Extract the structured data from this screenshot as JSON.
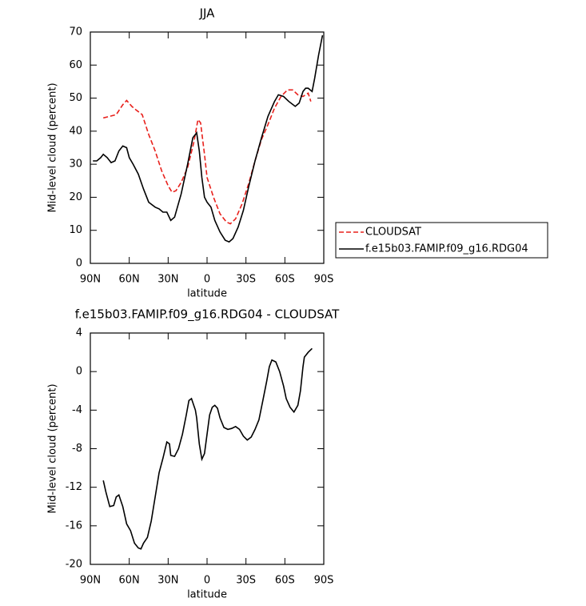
{
  "chart_data": [
    {
      "type": "line",
      "title": "JJA",
      "x_label": "latitude",
      "y_label": "Mid-level cloud (percent)",
      "xlim": [
        90,
        -90
      ],
      "xticks": [
        {
          "value": 90,
          "label": "90N"
        },
        {
          "value": 60,
          "label": "60N"
        },
        {
          "value": 30,
          "label": "30N"
        },
        0,
        {
          "value": -30,
          "label": "30S"
        },
        {
          "value": -60,
          "label": "60S"
        },
        {
          "value": -90,
          "label": "90S"
        }
      ],
      "ylim": [
        0,
        70
      ],
      "yticks": [
        0,
        10,
        20,
        30,
        40,
        50,
        60,
        70
      ],
      "legend": "right",
      "series": [
        {
          "name": "CLOUDSAT",
          "color": "#e8211c",
          "dashed": true,
          "x": [
            80,
            75,
            70,
            65,
            62,
            58,
            55,
            50,
            45,
            40,
            35,
            30,
            27,
            24,
            20,
            15,
            10,
            7,
            5,
            2,
            0,
            -5,
            -10,
            -15,
            -18,
            -22,
            -27,
            -32,
            -37,
            -42,
            -47,
            -52,
            -57,
            -62,
            -66,
            -70,
            -74,
            -78,
            -80
          ],
          "values": [
            44,
            44.5,
            45,
            48,
            49.3,
            47.5,
            46.5,
            45,
            39,
            34,
            28,
            23.5,
            21.5,
            22,
            24.5,
            29,
            37,
            43.5,
            42.5,
            33,
            26,
            20,
            15,
            12.5,
            12,
            13.5,
            18,
            24,
            31,
            37.5,
            42,
            47,
            50.5,
            52.5,
            52.5,
            51,
            50.5,
            51.5,
            49
          ]
        },
        {
          "name": "f.e15b03.FAMIP.f09_g16.RDG04",
          "color": "#000000",
          "dashed": false,
          "x": [
            88,
            85,
            82,
            80,
            77,
            74,
            71,
            68,
            65,
            62,
            60,
            57,
            53,
            49,
            45,
            40,
            37,
            34,
            31,
            28,
            25,
            20,
            15,
            11,
            8,
            6,
            4,
            2,
            0,
            -3,
            -6,
            -10,
            -14,
            -17,
            -20,
            -24,
            -28,
            -32,
            -37,
            -42,
            -47,
            -52,
            -55,
            -59,
            -63,
            -68,
            -71,
            -74,
            -76,
            -78,
            -81,
            -83,
            -86,
            -89
          ],
          "values": [
            31,
            31,
            32,
            33,
            32,
            30.5,
            31,
            34,
            35.5,
            35,
            32,
            30,
            27,
            22.5,
            18.5,
            17,
            16.5,
            15.5,
            15.5,
            13,
            14,
            21,
            30,
            38,
            39.5,
            34,
            26,
            20,
            18.5,
            17,
            13,
            9.5,
            7,
            6.5,
            7.5,
            11,
            16,
            23,
            31,
            38,
            44.5,
            49,
            51,
            50.5,
            49,
            47.5,
            48.5,
            52,
            53,
            53,
            52,
            56,
            63,
            69
          ]
        }
      ]
    },
    {
      "type": "line",
      "title": "f.e15b03.FAMIP.f09_g16.RDG04 - CLOUDSAT",
      "x_label": "latitude",
      "y_label": "Mid-level cloud (percent)",
      "xlim": [
        90,
        -90
      ],
      "xticks": [
        {
          "value": 90,
          "label": "90N"
        },
        {
          "value": 60,
          "label": "60N"
        },
        {
          "value": 30,
          "label": "30N"
        },
        0,
        {
          "value": -30,
          "label": "30S"
        },
        {
          "value": -60,
          "label": "60S"
        },
        {
          "value": -90,
          "label": "90S"
        }
      ],
      "ylim": [
        -20,
        4
      ],
      "yticks": [
        -20,
        -16,
        -12,
        -8,
        -4,
        0,
        4
      ],
      "series": [
        {
          "color": "#000000",
          "dashed": false,
          "x": [
            80,
            78,
            75,
            72,
            70,
            68,
            65,
            62,
            59,
            56,
            53,
            51,
            49,
            46,
            43,
            40,
            37,
            34,
            31,
            29,
            28,
            25,
            22,
            19,
            16,
            14,
            12,
            9,
            8,
            6,
            4,
            2,
            0,
            -2,
            -4,
            -6,
            -8,
            -10,
            -13,
            -16,
            -19,
            -22,
            -25,
            -28,
            -31,
            -34,
            -37,
            -40,
            -43,
            -46,
            -48,
            -50,
            -53,
            -56,
            -59,
            -61,
            -64,
            -67,
            -70,
            -72,
            -74,
            -75,
            -78,
            -81
          ],
          "values": [
            -11.3,
            -12.5,
            -14,
            -13.9,
            -13,
            -12.8,
            -14,
            -15.8,
            -16.5,
            -17.8,
            -18.3,
            -18.4,
            -17.8,
            -17.2,
            -15.5,
            -13,
            -10.5,
            -9,
            -7.3,
            -7.5,
            -8.7,
            -8.8,
            -8,
            -6.5,
            -4.5,
            -3,
            -2.8,
            -4,
            -4.8,
            -7.5,
            -9.1,
            -8.5,
            -6.5,
            -4.5,
            -3.7,
            -3.5,
            -3.8,
            -4.8,
            -5.8,
            -6,
            -5.9,
            -5.7,
            -6,
            -6.7,
            -7.1,
            -6.8,
            -6,
            -5,
            -3,
            -1,
            0.5,
            1.2,
            1,
            0,
            -1.5,
            -2.8,
            -3.7,
            -4.2,
            -3.5,
            -2,
            0.5,
            1.5,
            2,
            2.4
          ]
        }
      ]
    }
  ]
}
